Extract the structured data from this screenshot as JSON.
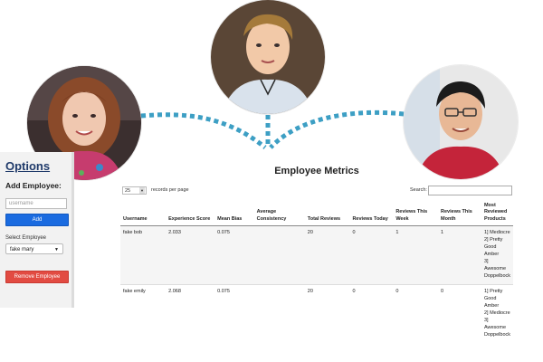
{
  "photos": [
    {
      "name": "left",
      "icon": "person-photo-left"
    },
    {
      "name": "center",
      "icon": "person-photo-center"
    },
    {
      "name": "right",
      "icon": "person-photo-right"
    }
  ],
  "colors": {
    "connector": "#3d9fc4",
    "add_button": "#1a6be0",
    "remove_button": "#e24b42",
    "heading": "#1f3a6a"
  },
  "sidebar": {
    "heading": "Options",
    "add_label": "Add Employee:",
    "username_placeholder": "username",
    "add_button": "Add",
    "select_label": "Select Employee",
    "selected_employee": "fake mary",
    "remove_button": "Remove Employee"
  },
  "main": {
    "title": "Employee Metrics",
    "page_length": "25",
    "page_length_label": "records per page",
    "search_label": "Search:",
    "search_value": ""
  },
  "table": {
    "headers": [
      "Username",
      "Experience Score",
      "Mean Bias",
      "Average Consistency",
      "Total Reviews",
      "Reviews Today",
      "Reviews This Week",
      "Reviews This Month",
      "Most Reviewed Products"
    ],
    "rows": [
      {
        "username": "fake bob",
        "experience": "2.033",
        "bias": "0.075",
        "consistency": "",
        "total": "20",
        "today": "0",
        "week": "1",
        "month": "1",
        "products": [
          "1] Mediocre",
          "2] Pretty Good Amber",
          "3] Awesome Doppelbock"
        ]
      },
      {
        "username": "fake emily",
        "experience": "2.068",
        "bias": "0.075",
        "consistency": "",
        "total": "20",
        "today": "0",
        "week": "0",
        "month": "0",
        "products": [
          "1] Pretty Good Amber",
          "2] Mediocre",
          "3] Awesome Doppelbock"
        ]
      }
    ]
  }
}
